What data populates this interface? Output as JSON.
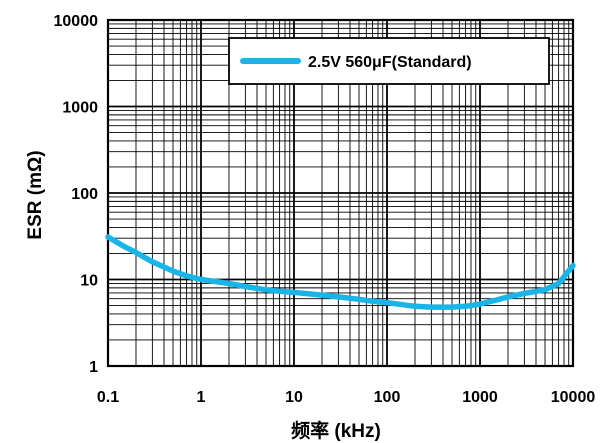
{
  "chart_data": {
    "type": "line",
    "title": "",
    "xlabel": "频率 (kHz)",
    "ylabel": "ESR (mΩ)",
    "x_scale": "log",
    "y_scale": "log",
    "xlim": [
      0.1,
      10000
    ],
    "ylim": [
      1,
      10000
    ],
    "x_ticks": [
      "0.1",
      "1",
      "10",
      "100",
      "1000",
      "10000"
    ],
    "y_ticks": [
      "1",
      "10",
      "100",
      "1000",
      "10000"
    ],
    "grid": true,
    "legend_position": "top-right",
    "series": [
      {
        "name": "2.5V 560μF(Standard)",
        "color": "#19b4e8",
        "x": [
          0.1,
          0.15,
          0.2,
          0.3,
          0.5,
          0.7,
          1,
          2,
          3,
          5,
          7,
          10,
          20,
          30,
          50,
          70,
          100,
          150,
          200,
          300,
          500,
          700,
          1000,
          1500,
          2000,
          3000,
          5000,
          7000,
          10000
        ],
        "y": [
          31,
          24,
          20.5,
          16,
          12.5,
          11,
          10,
          9.0,
          8.3,
          7.6,
          7.3,
          7.1,
          6.6,
          6.3,
          5.9,
          5.6,
          5.4,
          5.1,
          4.9,
          4.8,
          4.8,
          4.9,
          5.2,
          5.8,
          6.3,
          6.9,
          7.6,
          9.0,
          14.5
        ]
      }
    ]
  }
}
